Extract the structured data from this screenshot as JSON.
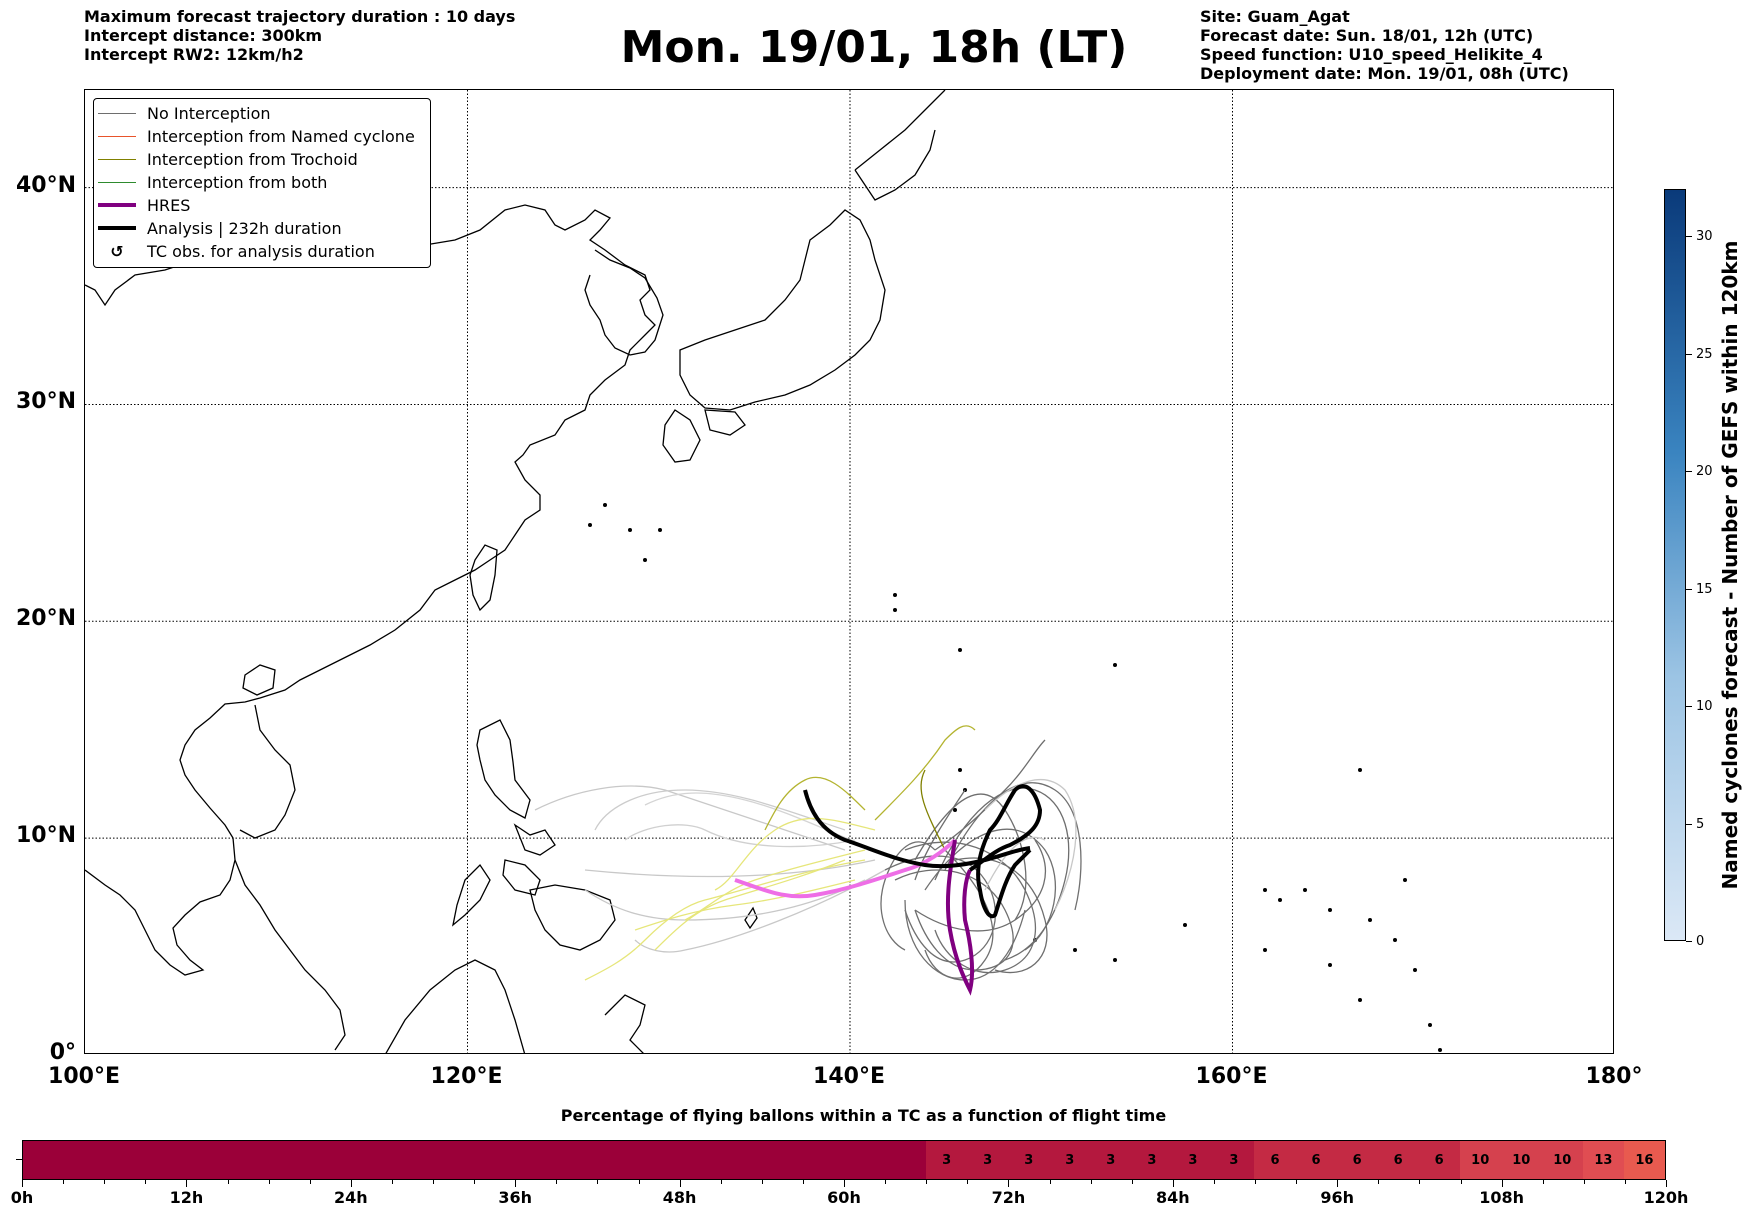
{
  "header": {
    "left": [
      "Maximum forecast trajectory duration : 10 days",
      "Intercept distance: 300km",
      "Intercept RW2: 12km/h2"
    ],
    "title": "Mon. 19/01, 18h (LT)",
    "right": [
      "Site: Guam_Agat",
      "Forecast date: Sun. 18/01, 12h (UTC)",
      "Speed function: U10_speed_Helikite_4",
      "Deployment date: Mon. 19/01, 08h (UTC)"
    ]
  },
  "map": {
    "lon_range": [
      100,
      180
    ],
    "lat_range": [
      0,
      44.5
    ],
    "lat_labels": [
      {
        "value": 40,
        "text": "40°N"
      },
      {
        "value": 30,
        "text": "30°N"
      },
      {
        "value": 20,
        "text": "20°N"
      },
      {
        "value": 10,
        "text": "10°N"
      },
      {
        "value": 0,
        "text": "0°"
      }
    ],
    "lon_labels": [
      {
        "value": 100,
        "text": "100°E"
      },
      {
        "value": 120,
        "text": "120°E"
      },
      {
        "value": 140,
        "text": "140°E"
      },
      {
        "value": 160,
        "text": "160°E"
      },
      {
        "value": 180,
        "text": "180°"
      }
    ],
    "gridlines": "dotted"
  },
  "legend": {
    "items": [
      {
        "label": "No Interception",
        "color": "#6e6e6e",
        "weight": 1
      },
      {
        "label": "Interception from Named cyclone",
        "color": "#e8542b",
        "weight": 1
      },
      {
        "label": "Interception from Trochoid",
        "color": "#808000",
        "weight": 1
      },
      {
        "label": "Interception from both",
        "color": "#2e8b2e",
        "weight": 1
      },
      {
        "label": "HRES",
        "color": "#800080",
        "weight": 4
      },
      {
        "label": "Analysis | 232h duration",
        "color": "#000000",
        "weight": 4
      },
      {
        "label": "TC obs. for analysis duration",
        "color": "#000000",
        "weight": 0,
        "symbol": "↺"
      }
    ]
  },
  "colorbar": {
    "title": "Named cyclones forecast - Number of GEFS within 120km",
    "range": [
      0,
      32
    ],
    "ticks": [
      {
        "value": 0,
        "text": "0"
      },
      {
        "value": 5,
        "text": "5"
      },
      {
        "value": 10,
        "text": "10"
      },
      {
        "value": 15,
        "text": "15"
      },
      {
        "value": 20,
        "text": "20"
      },
      {
        "value": 25,
        "text": "25"
      },
      {
        "value": 30,
        "text": "30"
      }
    ],
    "color_low": "#dbe8f6",
    "color_high": "#0a3a7a"
  },
  "flight_bar": {
    "title": "Percentage of flying ballons within a TC as a function of flight time",
    "ticks": [
      {
        "hour": 0,
        "text": "0h"
      },
      {
        "hour": 12,
        "text": "12h"
      },
      {
        "hour": 24,
        "text": "24h"
      },
      {
        "hour": 36,
        "text": "36h"
      },
      {
        "hour": 48,
        "text": "48h"
      },
      {
        "hour": 60,
        "text": "60h"
      },
      {
        "hour": 72,
        "text": "72h"
      },
      {
        "hour": 84,
        "text": "84h"
      },
      {
        "hour": 96,
        "text": "96h"
      },
      {
        "hour": 108,
        "text": "108h"
      },
      {
        "hour": 120,
        "text": "120h"
      }
    ],
    "segments": [
      {
        "from": 0,
        "to": 66,
        "value": "",
        "color": "#9b0039"
      },
      {
        "from": 66,
        "to": 69,
        "value": "3",
        "color": "#b4183e"
      },
      {
        "from": 69,
        "to": 72,
        "value": "3",
        "color": "#b4183e"
      },
      {
        "from": 72,
        "to": 75,
        "value": "3",
        "color": "#b4183e"
      },
      {
        "from": 75,
        "to": 78,
        "value": "3",
        "color": "#b4183e"
      },
      {
        "from": 78,
        "to": 81,
        "value": "3",
        "color": "#b4183e"
      },
      {
        "from": 81,
        "to": 84,
        "value": "3",
        "color": "#b4183e"
      },
      {
        "from": 84,
        "to": 87,
        "value": "3",
        "color": "#b4183e"
      },
      {
        "from": 87,
        "to": 90,
        "value": "3",
        "color": "#b4183e"
      },
      {
        "from": 90,
        "to": 93,
        "value": "6",
        "color": "#c42a44"
      },
      {
        "from": 93,
        "to": 96,
        "value": "6",
        "color": "#c42a44"
      },
      {
        "from": 96,
        "to": 99,
        "value": "6",
        "color": "#c42a44"
      },
      {
        "from": 99,
        "to": 102,
        "value": "6",
        "color": "#c42a44"
      },
      {
        "from": 102,
        "to": 105,
        "value": "6",
        "color": "#c42a44"
      },
      {
        "from": 105,
        "to": 108,
        "value": "10",
        "color": "#d5414e"
      },
      {
        "from": 108,
        "to": 111,
        "value": "10",
        "color": "#d5414e"
      },
      {
        "from": 111,
        "to": 114,
        "value": "10",
        "color": "#d5414e"
      },
      {
        "from": 114,
        "to": 117,
        "value": "13",
        "color": "#e04d52"
      },
      {
        "from": 117,
        "to": 120,
        "value": "16",
        "color": "#e85a4f"
      }
    ]
  }
}
